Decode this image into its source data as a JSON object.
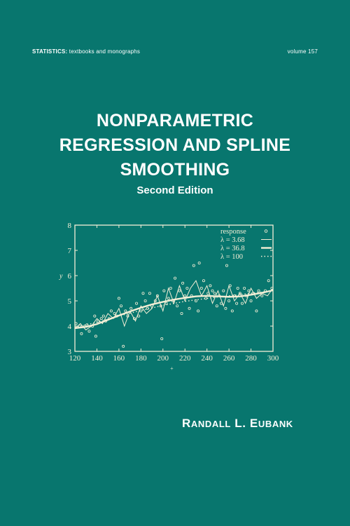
{
  "series": {
    "name": "STATISTICS:",
    "subtitle": "textbooks and monographs",
    "volume": "volume 157"
  },
  "title_lines": [
    "NONPARAMETRIC",
    "REGRESSION AND SPLINE",
    "SMOOTHING"
  ],
  "edition": "Second Edition",
  "author": {
    "first": "R",
    "first_rest": "ANDALL",
    "middle": "L.",
    "last": "E",
    "last_rest": "UBANK"
  },
  "colors": {
    "background": "#08766e",
    "foreground": "#ffffff",
    "plot_ink": "#f4efd6"
  },
  "chart_data": {
    "type": "scatter",
    "title": "",
    "xlabel": "",
    "ylabel": "y",
    "xlim": [
      120,
      300
    ],
    "ylim": [
      3,
      8
    ],
    "x_ticks": [
      "120",
      "140",
      "160",
      "180",
      "200",
      "220",
      "240",
      "260",
      "280",
      "300"
    ],
    "y_ticks": [
      "3",
      "4",
      "5",
      "6",
      "7",
      "8"
    ],
    "legend": {
      "placement": "top-right",
      "entries": [
        {
          "label": "response",
          "style": "circle"
        },
        {
          "label": "λ = 3.68",
          "style": "thin-solid"
        },
        {
          "label": "λ = 36.8",
          "style": "thick-solid"
        },
        {
          "label": "λ = 100",
          "style": "dotted"
        }
      ]
    },
    "series": [
      {
        "name": "response",
        "kind": "points",
        "points": [
          [
            121,
            4.1
          ],
          [
            124,
            4.0
          ],
          [
            126,
            3.7
          ],
          [
            129,
            4.0
          ],
          [
            131,
            4.05
          ],
          [
            133,
            3.8
          ],
          [
            136,
            4.0
          ],
          [
            138,
            4.4
          ],
          [
            139,
            3.6
          ],
          [
            141,
            4.2
          ],
          [
            144,
            4.3
          ],
          [
            146,
            4.4
          ],
          [
            148,
            4.2
          ],
          [
            151,
            4.3
          ],
          [
            153,
            4.6
          ],
          [
            156,
            4.5
          ],
          [
            158,
            4.4
          ],
          [
            160,
            5.1
          ],
          [
            162,
            4.8
          ],
          [
            164,
            3.2
          ],
          [
            166,
            4.6
          ],
          [
            168,
            4.4
          ],
          [
            171,
            4.7
          ],
          [
            174,
            4.3
          ],
          [
            176,
            4.9
          ],
          [
            178,
            4.4
          ],
          [
            180,
            4.6
          ],
          [
            182,
            5.3
          ],
          [
            184,
            5.0
          ],
          [
            186,
            4.7
          ],
          [
            188,
            5.3
          ],
          [
            190,
            4.8
          ],
          [
            193,
            5.0
          ],
          [
            195,
            5.2
          ],
          [
            198,
            4.8
          ],
          [
            199,
            3.5
          ],
          [
            201,
            5.4
          ],
          [
            203,
            4.9
          ],
          [
            205,
            5.1
          ],
          [
            207,
            5.5
          ],
          [
            209,
            5.0
          ],
          [
            211,
            5.9
          ],
          [
            213,
            4.8
          ],
          [
            215,
            5.4
          ],
          [
            217,
            4.5
          ],
          [
            218,
            5.7
          ],
          [
            220,
            5.2
          ],
          [
            222,
            5.5
          ],
          [
            224,
            4.7
          ],
          [
            226,
            5.2
          ],
          [
            228,
            6.4
          ],
          [
            230,
            5.0
          ],
          [
            232,
            4.6
          ],
          [
            233,
            6.5
          ],
          [
            235,
            5.5
          ],
          [
            237,
            5.8
          ],
          [
            239,
            5.1
          ],
          [
            241,
            5.3
          ],
          [
            243,
            5.6
          ],
          [
            245,
            5.4
          ],
          [
            247,
            5.3
          ],
          [
            249,
            4.8
          ],
          [
            251,
            5.2
          ],
          [
            253,
            4.9
          ],
          [
            255,
            5.4
          ],
          [
            257,
            4.7
          ],
          [
            258,
            6.4
          ],
          [
            260,
            5.0
          ],
          [
            261,
            5.6
          ],
          [
            263,
            4.6
          ],
          [
            265,
            5.2
          ],
          [
            267,
            4.9
          ],
          [
            268,
            5.5
          ],
          [
            270,
            5.3
          ],
          [
            272,
            4.9
          ],
          [
            274,
            5.5
          ],
          [
            276,
            5.2
          ],
          [
            278,
            5.4
          ],
          [
            280,
            5.0
          ],
          [
            282,
            5.3
          ],
          [
            285,
            4.6
          ],
          [
            287,
            5.4
          ],
          [
            290,
            5.2
          ],
          [
            293,
            5.4
          ],
          [
            296,
            5.8
          ],
          [
            299,
            5.5
          ]
        ]
      },
      {
        "name": "λ = 3.68",
        "kind": "line",
        "style": "thin-solid",
        "x": [
          120,
          125,
          130,
          135,
          140,
          145,
          150,
          155,
          160,
          165,
          170,
          175,
          180,
          185,
          190,
          195,
          200,
          205,
          210,
          215,
          220,
          225,
          230,
          235,
          240,
          245,
          250,
          255,
          260,
          265,
          270,
          275,
          280,
          285,
          290,
          295,
          300
        ],
        "y": [
          3.9,
          4.1,
          3.85,
          4.0,
          4.3,
          4.1,
          4.5,
          4.3,
          4.7,
          4.0,
          4.6,
          4.2,
          4.8,
          4.5,
          4.7,
          5.2,
          4.6,
          5.5,
          4.9,
          5.6,
          5.0,
          5.5,
          5.8,
          5.2,
          5.6,
          4.9,
          5.4,
          4.8,
          5.6,
          5.0,
          5.3,
          4.9,
          5.5,
          5.1,
          5.3,
          5.2,
          5.5
        ]
      },
      {
        "name": "λ = 36.8",
        "kind": "line",
        "style": "thick-solid",
        "x": [
          120,
          130,
          140,
          150,
          160,
          170,
          180,
          190,
          200,
          210,
          220,
          230,
          240,
          250,
          260,
          270,
          280,
          290,
          300
        ],
        "y": [
          3.92,
          3.97,
          4.08,
          4.25,
          4.42,
          4.58,
          4.73,
          4.86,
          4.96,
          5.05,
          5.12,
          5.18,
          5.2,
          5.18,
          5.16,
          5.18,
          5.24,
          5.32,
          5.42
        ]
      },
      {
        "name": "λ = 100",
        "kind": "line",
        "style": "dotted",
        "x": [
          120,
          140,
          160,
          180,
          200,
          220,
          240,
          260,
          280,
          300
        ],
        "y": [
          3.95,
          4.15,
          4.4,
          4.62,
          4.82,
          4.98,
          5.1,
          5.2,
          5.3,
          5.4
        ]
      }
    ]
  }
}
